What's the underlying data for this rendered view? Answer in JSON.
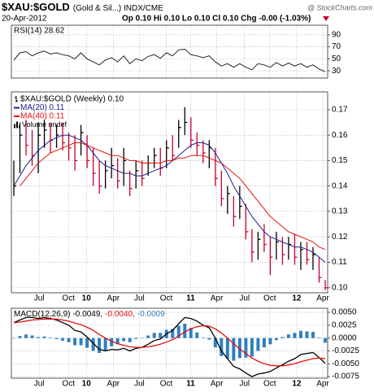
{
  "header": {
    "symbol": "$XAU:$GOLD",
    "name": "(Gold & Sil...) INDX/CME",
    "date": "20-Apr-2012",
    "quote": "Op 0.10 Hi 0.10 Lo 0.10 Cl 0.10 Chg -0.00 (-1.03%)",
    "copyright": "@ StockCharts.com"
  },
  "chart_data": [
    {
      "type": "line",
      "xlim": [
        0,
        51
      ],
      "ylim": [
        18,
        106
      ],
      "yticks": [
        30,
        50,
        70,
        90
      ],
      "grid": true,
      "series": [
        {
          "name": "RSI(14) 28.62",
          "color": "#222222",
          "values": [
            48,
            60,
            62,
            55,
            60,
            63,
            58,
            60,
            57,
            55,
            50,
            60,
            50,
            45,
            40,
            48,
            52,
            45,
            55,
            42,
            50,
            47,
            54,
            57,
            51,
            60,
            55,
            65,
            66,
            57,
            55,
            52,
            55,
            45,
            38,
            42,
            36,
            42,
            36,
            32,
            42,
            40,
            36,
            44,
            38,
            43,
            38,
            42,
            36,
            40,
            33,
            28.62
          ]
        }
      ]
    },
    {
      "type": "ohlc",
      "xlim": [
        0,
        51
      ],
      "ylim": [
        0.098,
        0.177
      ],
      "grid": true,
      "yticks": [
        {
          "value": 0.1,
          "label": "0.10"
        },
        0.11,
        0.12,
        0.13,
        0.14,
        0.15,
        0.16,
        0.17
      ],
      "xticks": [
        {
          "value": 4.14,
          "label": "Jul"
        },
        {
          "value": 8.95,
          "label": "Oct"
        },
        {
          "value": 11.88,
          "label": "10"
        },
        {
          "value": 16.29,
          "label": "Apr"
        },
        {
          "value": 20.56,
          "label": "Jul"
        },
        {
          "value": 24.97,
          "label": "Oct"
        },
        {
          "value": 28.97,
          "label": "11"
        },
        {
          "value": 33.24,
          "label": "Apr"
        },
        {
          "value": 37.78,
          "label": "Jul"
        },
        {
          "value": 41.92,
          "label": "Oct"
        },
        {
          "value": 46.33,
          "label": "12"
        },
        {
          "value": 50.6,
          "label": "Apr"
        }
      ],
      "volume_label": "Volume undef",
      "series": [
        {
          "name": "$XAU:$GOLD (Weekly) 0.10",
          "up_color": "#000000",
          "down_color": "#c8002a",
          "high": [
            0.15,
            0.165,
            0.166,
            0.162,
            0.165,
            0.166,
            0.165,
            0.164,
            0.165,
            0.161,
            0.16,
            0.164,
            0.16,
            0.155,
            0.15,
            0.15,
            0.155,
            0.151,
            0.155,
            0.146,
            0.15,
            0.15,
            0.152,
            0.155,
            0.155,
            0.158,
            0.16,
            0.166,
            0.171,
            0.167,
            0.161,
            0.158,
            0.158,
            0.155,
            0.146,
            0.14,
            0.136,
            0.14,
            0.133,
            0.123,
            0.122,
            0.125,
            0.12,
            0.122,
            0.12,
            0.12,
            0.121,
            0.118,
            0.118,
            0.116,
            0.112,
            0.103
          ],
          "low": [
            0.136,
            0.145,
            0.152,
            0.148,
            0.145,
            0.155,
            0.153,
            0.155,
            0.154,
            0.15,
            0.146,
            0.152,
            0.147,
            0.14,
            0.137,
            0.139,
            0.143,
            0.139,
            0.14,
            0.136,
            0.139,
            0.14,
            0.144,
            0.147,
            0.144,
            0.147,
            0.15,
            0.155,
            0.16,
            0.155,
            0.152,
            0.149,
            0.147,
            0.14,
            0.132,
            0.129,
            0.124,
            0.127,
            0.119,
            0.11,
            0.111,
            0.114,
            0.105,
            0.111,
            0.109,
            0.111,
            0.109,
            0.107,
            0.109,
            0.107,
            0.102,
            0.099
          ],
          "close": [
            0.14,
            0.16,
            0.156,
            0.152,
            0.16,
            0.162,
            0.158,
            0.16,
            0.157,
            0.155,
            0.15,
            0.161,
            0.15,
            0.145,
            0.14,
            0.146,
            0.148,
            0.142,
            0.15,
            0.139,
            0.146,
            0.143,
            0.149,
            0.152,
            0.147,
            0.155,
            0.152,
            0.163,
            0.165,
            0.158,
            0.156,
            0.153,
            0.155,
            0.143,
            0.135,
            0.137,
            0.128,
            0.132,
            0.122,
            0.114,
            0.119,
            0.117,
            0.112,
            0.118,
            0.113,
            0.117,
            0.112,
            0.115,
            0.111,
            0.113,
            0.104,
            0.1
          ]
        },
        {
          "name": "MA(20) 0.11",
          "color": "#1c1c8c",
          "values": [
            0.14,
            0.144,
            0.148,
            0.151,
            0.154,
            0.156,
            0.158,
            0.159,
            0.16,
            0.16,
            0.159,
            0.158,
            0.156,
            0.153,
            0.15,
            0.148,
            0.147,
            0.146,
            0.145,
            0.145,
            0.144,
            0.144,
            0.145,
            0.146,
            0.147,
            0.148,
            0.15,
            0.152,
            0.154,
            0.156,
            0.157,
            0.157,
            0.156,
            0.153,
            0.149,
            0.145,
            0.14,
            0.136,
            0.132,
            0.128,
            0.125,
            0.122,
            0.12,
            0.119,
            0.118,
            0.117,
            0.116,
            0.116,
            0.115,
            0.114,
            0.112,
            0.11
          ]
        },
        {
          "name": "MA(40) 0.11",
          "color": "#e01010",
          "values": [
            null,
            0.14,
            0.143,
            0.146,
            0.149,
            0.151,
            0.153,
            0.154,
            0.155,
            0.156,
            0.157,
            0.157,
            0.156,
            0.155,
            0.154,
            0.153,
            0.152,
            0.152,
            0.151,
            0.15,
            0.15,
            0.149,
            0.149,
            0.149,
            0.149,
            0.15,
            0.15,
            0.151,
            0.151,
            0.152,
            0.152,
            0.152,
            0.151,
            0.15,
            0.149,
            0.147,
            0.145,
            0.143,
            0.14,
            0.137,
            0.134,
            0.131,
            0.128,
            0.126,
            0.124,
            0.122,
            0.121,
            0.12,
            0.119,
            0.118,
            0.116,
            0.115
          ]
        }
      ]
    },
    {
      "type": "macd",
      "title": "MACD(12,26,9)",
      "xlim": [
        0,
        51
      ],
      "ylim": [
        -0.0078,
        0.0058
      ],
      "grid": true,
      "yticks": [
        {
          "value": 0.005,
          "label": "0.0050"
        },
        {
          "value": 0.0025,
          "label": "0.0025"
        },
        {
          "value": 0,
          "label": "0.0000"
        },
        {
          "value": -0.0025,
          "label": "-0.0025"
        },
        {
          "value": -0.005,
          "label": "-0.0050"
        },
        {
          "value": -0.0075,
          "label": "-0.0075"
        }
      ],
      "xticks": [
        {
          "value": 4.14,
          "label": "Jul"
        },
        {
          "value": 8.95,
          "label": "Oct"
        },
        {
          "value": 11.88,
          "label": "10"
        },
        {
          "value": 16.29,
          "label": "Apr"
        },
        {
          "value": 20.56,
          "label": "Jul"
        },
        {
          "value": 24.97,
          "label": "Oct"
        },
        {
          "value": 28.97,
          "label": "11"
        },
        {
          "value": 33.24,
          "label": "Apr"
        },
        {
          "value": 37.78,
          "label": "Jul"
        },
        {
          "value": 41.92,
          "label": "Oct"
        },
        {
          "value": 46.33,
          "label": "12"
        },
        {
          "value": 50.6,
          "label": "Apr"
        }
      ],
      "series": [
        {
          "name": "-0.0049,",
          "kind": "line",
          "color": "#000000",
          "values": [
            0.003,
            0.0035,
            0.004,
            0.004,
            0.0038,
            0.004,
            0.0038,
            0.0035,
            0.003,
            0.0025,
            0.0015,
            0.0012,
            0.0002,
            -0.001,
            -0.0022,
            -0.0025,
            -0.0022,
            -0.0023,
            -0.002,
            -0.0025,
            -0.002,
            -0.0018,
            -0.0012,
            -0.0005,
            -0.0002,
            0.0008,
            0.0015,
            0.0028,
            0.004,
            0.0038,
            0.0033,
            0.0025,
            0.002,
            0.0,
            -0.0025,
            -0.004,
            -0.0055,
            -0.006,
            -0.0068,
            -0.0075,
            -0.007,
            -0.0068,
            -0.0065,
            -0.0058,
            -0.0052,
            -0.0045,
            -0.004,
            -0.0032,
            -0.003,
            -0.0028,
            -0.0038,
            -0.0049
          ]
        },
        {
          "name": "-0.0040,",
          "kind": "line",
          "color": "#e01010",
          "values": [
            0.003,
            0.0031,
            0.0033,
            0.0035,
            0.0036,
            0.0037,
            0.0037,
            0.0037,
            0.0035,
            0.0033,
            0.0029,
            0.0026,
            0.0021,
            0.0015,
            0.0007,
            0.0,
            -0.0006,
            -0.0011,
            -0.0014,
            -0.0017,
            -0.0018,
            -0.0018,
            -0.0017,
            -0.0015,
            -0.0012,
            -0.0008,
            -0.0003,
            0.0004,
            0.0012,
            0.0018,
            0.0022,
            0.0024,
            0.0023,
            0.0018,
            0.001,
            0.0,
            -0.0011,
            -0.0021,
            -0.003,
            -0.0039,
            -0.0045,
            -0.005,
            -0.0053,
            -0.0054,
            -0.0054,
            -0.0052,
            -0.005,
            -0.0046,
            -0.0043,
            -0.004,
            -0.0039,
            -0.004
          ]
        },
        {
          "name": "-0.0009",
          "kind": "histogram",
          "color": "#2f7fc0",
          "values": [
            0.0,
            0.0004,
            0.0007,
            0.0005,
            0.0002,
            0.0003,
            0.0001,
            -0.0002,
            -0.0005,
            -0.0008,
            -0.0014,
            -0.0014,
            -0.0019,
            -0.0025,
            -0.0029,
            -0.0025,
            -0.0016,
            -0.0012,
            -0.0006,
            -0.0008,
            -0.0002,
            0.0,
            0.0005,
            0.001,
            0.001,
            0.0016,
            0.0018,
            0.0024,
            0.0028,
            0.002,
            0.0011,
            0.0001,
            -0.0003,
            -0.0018,
            -0.0035,
            -0.004,
            -0.0044,
            -0.0039,
            -0.0038,
            -0.0036,
            -0.0025,
            -0.0018,
            -0.0012,
            -0.0004,
            0.0002,
            0.0007,
            0.001,
            0.0014,
            0.0013,
            0.0012,
            0.0001,
            -0.0009
          ]
        }
      ]
    }
  ]
}
